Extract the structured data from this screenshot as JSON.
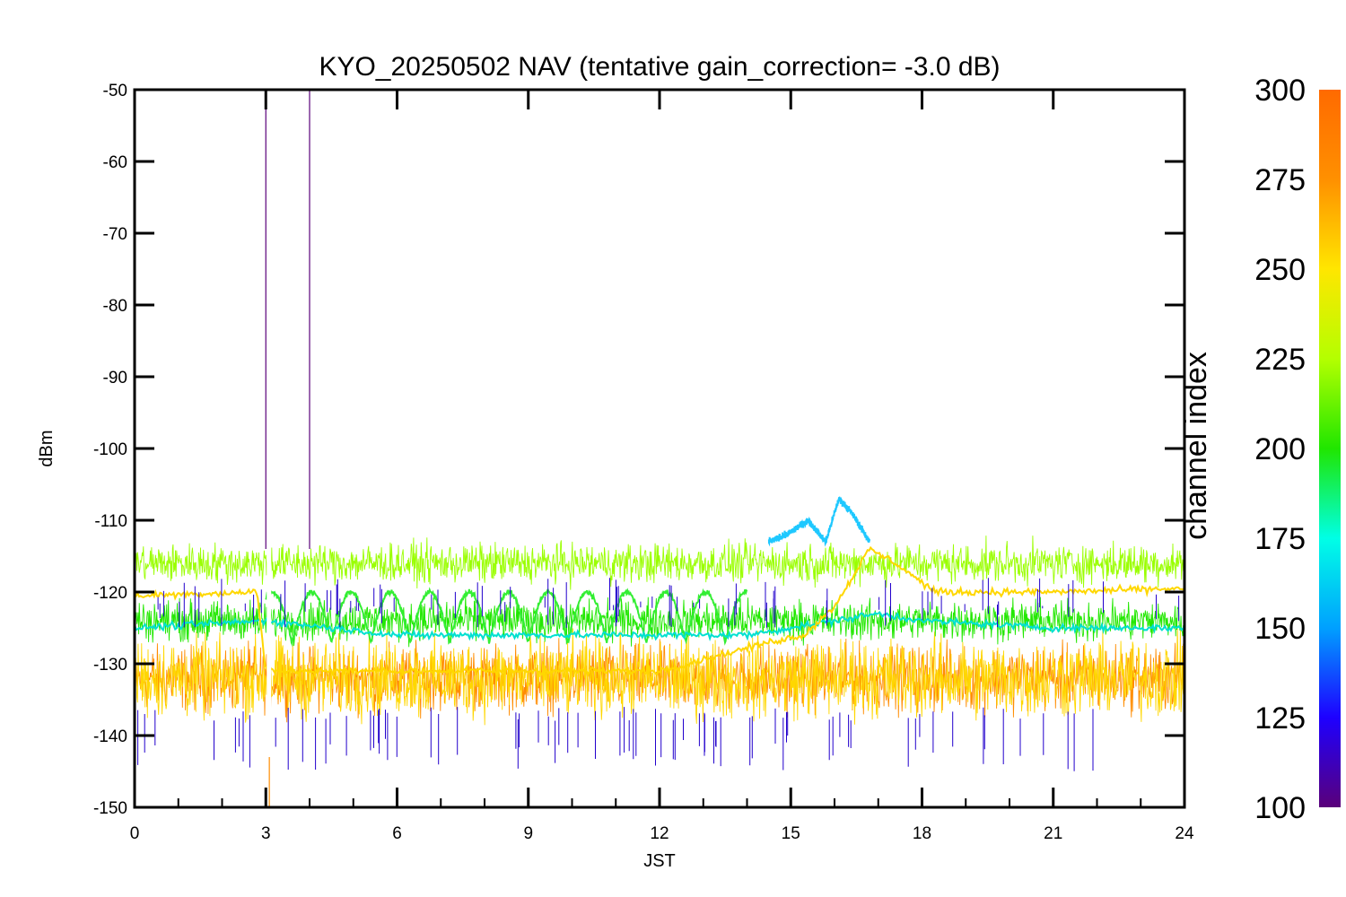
{
  "chart_data": {
    "type": "line",
    "title": "KYO_20250502 NAV (tentative gain_correction= -3.0 dB)",
    "xlabel": "JST",
    "ylabel": "dBm",
    "xlim": [
      0,
      24
    ],
    "ylim": [
      -150,
      -50
    ],
    "xticks": [
      "0",
      "3",
      "6",
      "9",
      "12",
      "15",
      "18",
      "21",
      "24"
    ],
    "yticks": [
      "-50",
      "-60",
      "-70",
      "-80",
      "-90",
      "-100",
      "-110",
      "-120",
      "-130",
      "-140",
      "-150"
    ],
    "grid": false,
    "colorbar": {
      "label": "channel index",
      "range": [
        100,
        300
      ],
      "ticks": [
        "300",
        "275",
        "250",
        "225",
        "200",
        "175",
        "150",
        "125",
        "100"
      ],
      "colormap": "rainbow",
      "colors": [
        "#5a007a",
        "#1e00ff",
        "#00a0ff",
        "#00ffe6",
        "#20e600",
        "#b4ff00",
        "#ffe600",
        "#ff9000",
        "#ff6a00"
      ]
    },
    "series": [
      {
        "channel": 295,
        "color": "#ff8c00",
        "style": "noise-band",
        "x_range": [
          0,
          24
        ],
        "y_center": -132,
        "y_spread": [
          -139,
          -126
        ]
      },
      {
        "channel": 285,
        "color": "#ffd700",
        "style": "noise-band",
        "x_range": [
          0,
          24
        ],
        "y_center": -132,
        "y_spread": [
          -140,
          -124
        ]
      },
      {
        "channel": 255,
        "color": "#9aff00",
        "style": "noise-band",
        "x_range": [
          0,
          24
        ],
        "y_center": -116,
        "y_spread": [
          -120,
          -112
        ]
      },
      {
        "channel": 230,
        "color": "#22e800",
        "style": "noise-band",
        "x_range": [
          0,
          24
        ],
        "y_center": -124,
        "y_spread": [
          -128,
          -120
        ]
      },
      {
        "channel": 240,
        "color": "#33ee33",
        "style": "oscillation",
        "x_range": [
          3,
          14
        ],
        "y_range": [
          -127,
          -120
        ],
        "period_hours": 0.9
      },
      {
        "channel": 190,
        "color": "#00e0d0",
        "style": "trace",
        "x": [
          0,
          3,
          6,
          9,
          12,
          14,
          15,
          16,
          17,
          18,
          21,
          24
        ],
        "y": [
          -125,
          -124,
          -126,
          -126,
          -126,
          -126,
          -125,
          -124,
          -123,
          -124,
          -125,
          -125
        ]
      },
      {
        "channel": 270,
        "color": "#ffd700",
        "style": "trace",
        "x": [
          0,
          2.8,
          3,
          12,
          14.5,
          15.3,
          16,
          16.8,
          17.4,
          18.3,
          21,
          24
        ],
        "y": [
          -120.5,
          -120,
          -131,
          -131,
          -127,
          -126,
          -122,
          -114,
          -116,
          -120,
          -120,
          -119.5
        ]
      },
      {
        "channel": 170,
        "color": "#1ec8ff",
        "style": "trace",
        "x": [
          14.5,
          14.9,
          15.4,
          15.8,
          16.1,
          16.4,
          16.8
        ],
        "y": [
          -113,
          -112,
          -110,
          -113,
          -107,
          -109,
          -113
        ]
      },
      {
        "channel": 110,
        "color": "#5a007a",
        "style": "spike",
        "x": [
          3.0,
          4.0
        ],
        "y": [
          -50,
          -50
        ]
      },
      {
        "channel": 120,
        "color": "#2200cc",
        "style": "sparse-spikes",
        "x_range": [
          0,
          24
        ],
        "y_spread": [
          -145,
          -115
        ]
      }
    ]
  }
}
